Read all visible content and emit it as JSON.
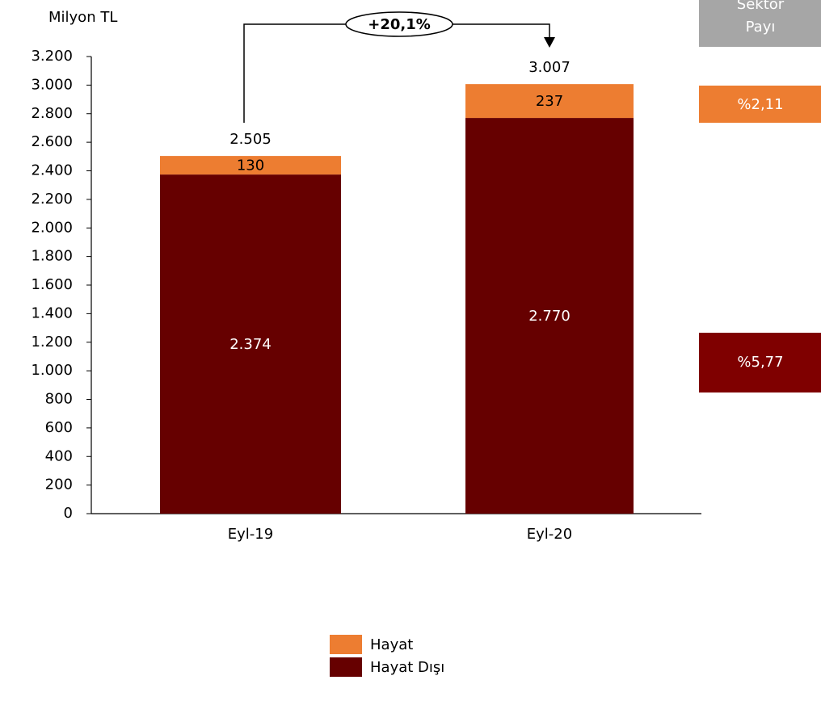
{
  "chart_data": {
    "type": "stacked_bar",
    "y_label": "Milyon TL",
    "categories": [
      "Eyl-19",
      "Eyl-20"
    ],
    "series": [
      {
        "name": "Hayat Dışı",
        "color": "#660000",
        "values": [
          2374,
          2770
        ],
        "value_labels": [
          "2.374",
          "2.770"
        ]
      },
      {
        "name": "Hayat",
        "color": "#ed7d31",
        "values": [
          130,
          237
        ]
      }
    ],
    "totals": {
      "values": [
        2505,
        3007
      ],
      "value_labels": [
        "2.505",
        "3.007"
      ]
    },
    "annotation": "+20,1%",
    "ylim": [
      0,
      3200
    ],
    "yticks": [
      0,
      200,
      400,
      600,
      800,
      {
        "value": 1000,
        "label": "1.000"
      },
      {
        "value": 1200,
        "label": "1.200"
      },
      {
        "value": 1400,
        "label": "1.400"
      },
      {
        "value": 1600,
        "label": "1.600"
      },
      {
        "value": 1800,
        "label": "1.800"
      },
      {
        "value": 2000,
        "label": "2.000"
      },
      {
        "value": 2200,
        "label": "2.200"
      },
      {
        "value": 2400,
        "label": "2.400"
      },
      {
        "value": 2600,
        "label": "2.600"
      },
      {
        "value": 2800,
        "label": "2.800"
      },
      {
        "value": 3000,
        "label": "3.000"
      },
      {
        "value": 3200,
        "label": "3.200"
      }
    ],
    "grid": false,
    "sector_share": {
      "title": "Sektör Payı",
      "items": [
        {
          "label": "%2,11",
          "color": "#ed7d31"
        },
        {
          "label": "%5,77",
          "color": "#7f0000"
        }
      ]
    }
  }
}
